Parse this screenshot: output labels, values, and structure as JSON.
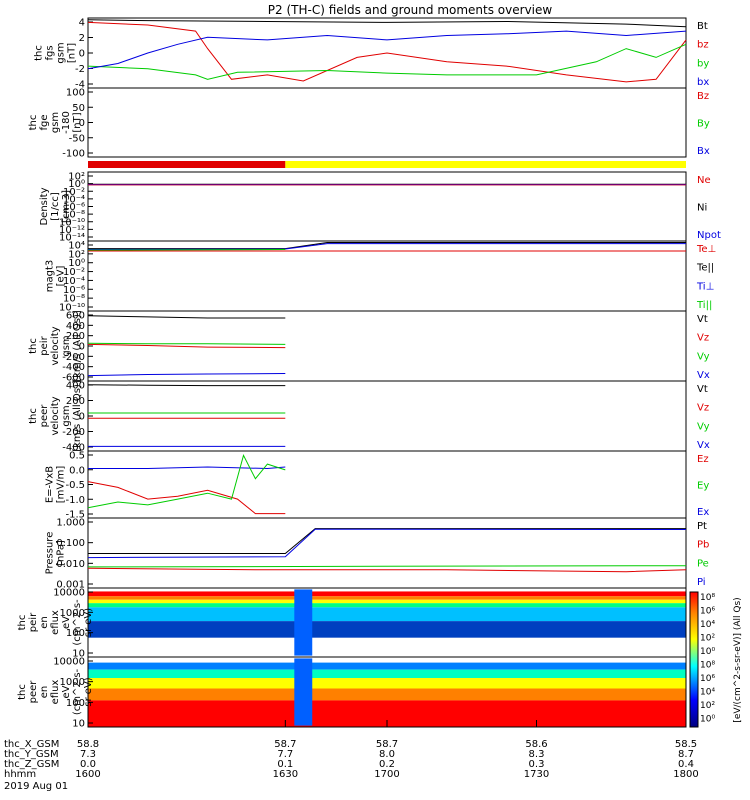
{
  "title": "P2 (TH-C) fields and ground moments overview",
  "colors": {
    "black": "#000000",
    "red": "#e00000",
    "green": "#00cc00",
    "blue": "#0000e0",
    "yellow": "#ffff00",
    "purple": "#800080"
  },
  "chart_data": [
    {
      "type": "line",
      "ylabel": [
        "thc",
        "fgs",
        "gsm",
        "[nT]"
      ],
      "yticks": [
        "4",
        "2",
        "0",
        "-2",
        "-4"
      ],
      "ylim": [
        -4,
        4
      ],
      "legend": [
        {
          "label": "Bt",
          "color": "black"
        },
        {
          "label": "bz",
          "color": "red"
        },
        {
          "label": "by",
          "color": "green"
        },
        {
          "label": "bx",
          "color": "blue"
        }
      ],
      "series": [
        {
          "name": "Bt",
          "color": "black",
          "points": [
            [
              0,
              3.8
            ],
            [
              0.1,
              3.7
            ],
            [
              0.3,
              3.6
            ],
            [
              0.5,
              3.5
            ],
            [
              0.7,
              3.6
            ],
            [
              0.9,
              3.3
            ],
            [
              1,
              3.0
            ]
          ]
        },
        {
          "name": "bz",
          "color": "red",
          "points": [
            [
              0,
              3.5
            ],
            [
              0.1,
              3.2
            ],
            [
              0.18,
              2.5
            ],
            [
              0.2,
              0.5
            ],
            [
              0.24,
              -3
            ],
            [
              0.3,
              -2.5
            ],
            [
              0.36,
              -3.2
            ],
            [
              0.45,
              -0.5
            ],
            [
              0.5,
              0
            ],
            [
              0.6,
              -1
            ],
            [
              0.7,
              -1.5
            ],
            [
              0.8,
              -2.5
            ],
            [
              0.9,
              -3.3
            ],
            [
              0.95,
              -3
            ],
            [
              1,
              1.5
            ]
          ]
        },
        {
          "name": "by",
          "color": "green",
          "points": [
            [
              0,
              -1.5
            ],
            [
              0.1,
              -1.8
            ],
            [
              0.18,
              -2.5
            ],
            [
              0.2,
              -3
            ],
            [
              0.25,
              -2.2
            ],
            [
              0.4,
              -2
            ],
            [
              0.5,
              -2.3
            ],
            [
              0.6,
              -2.5
            ],
            [
              0.75,
              -2.5
            ],
            [
              0.85,
              -1
            ],
            [
              0.9,
              0.5
            ],
            [
              0.95,
              -0.5
            ],
            [
              1,
              1
            ]
          ]
        },
        {
          "name": "bx",
          "color": "blue",
          "points": [
            [
              0,
              -1.8
            ],
            [
              0.05,
              -1.2
            ],
            [
              0.1,
              0
            ],
            [
              0.15,
              1
            ],
            [
              0.2,
              1.8
            ],
            [
              0.3,
              1.5
            ],
            [
              0.4,
              2
            ],
            [
              0.5,
              1.5
            ],
            [
              0.6,
              2
            ],
            [
              0.7,
              2.2
            ],
            [
              0.8,
              2.5
            ],
            [
              0.9,
              2
            ],
            [
              1,
              2.5
            ]
          ]
        }
      ]
    },
    {
      "type": "line",
      "ylabel": [
        "thc",
        "fge",
        "gsm",
        "-180",
        "[nT]"
      ],
      "yticks": [
        "100",
        "50",
        "0",
        "-50",
        "-100"
      ],
      "ylim": [
        -120,
        110
      ],
      "legend": [
        {
          "label": "Bz",
          "color": "red"
        },
        {
          "label": "By",
          "color": "green"
        },
        {
          "label": "Bx",
          "color": "blue"
        }
      ],
      "series": []
    },
    {
      "type": "bar",
      "status_bar": [
        {
          "from": 0,
          "to": 0.33,
          "color": "red"
        },
        {
          "from": 0.33,
          "to": 1,
          "color": "yellow"
        }
      ]
    },
    {
      "type": "line",
      "ylabel": [
        "Density",
        "[1/cc]",
        "[cm-3]"
      ],
      "yticks": [
        "10²",
        "10⁰",
        "10⁻²",
        "10⁻⁴",
        "10⁻⁶",
        "10⁻⁸",
        "10⁻¹⁰",
        "10⁻¹²",
        "10⁻¹⁴"
      ],
      "ylog": [
        -14,
        2
      ],
      "legend": [
        {
          "label": "Ne",
          "color": "red"
        },
        {
          "label": "Ni",
          "color": "black"
        },
        {
          "label": "Npot",
          "color": "blue"
        }
      ],
      "series": [
        {
          "name": "Ne",
          "color": "red",
          "points": [
            [
              0,
              0.1
            ],
            [
              1,
              0.1
            ]
          ]
        },
        {
          "name": "Ni",
          "color": "black",
          "points": [
            [
              0,
              0.15
            ],
            [
              1,
              0.15
            ]
          ]
        },
        {
          "name": "Npot",
          "color": "purple",
          "points": [
            [
              0,
              0.12
            ],
            [
              1,
              0.12
            ]
          ]
        }
      ]
    },
    {
      "type": "line",
      "ylabel": [
        "magt3",
        "[eV]"
      ],
      "yticks": [
        "10⁴",
        "10²",
        "10⁰",
        "10⁻²",
        "10⁻⁴",
        "10⁻⁶",
        "10⁻⁸",
        "10⁻¹⁰"
      ],
      "ylog": [
        -10,
        4
      ],
      "legend": [
        {
          "label": "Te⊥",
          "color": "red"
        },
        {
          "label": "Te||",
          "color": "black"
        },
        {
          "label": "Ti⊥",
          "color": "blue"
        },
        {
          "label": "Ti||",
          "color": "green"
        }
      ],
      "series": [
        {
          "name": "Te||",
          "color": "black",
          "points": [
            [
              0,
              300
            ],
            [
              0.33,
              300
            ],
            [
              0.4,
              5000
            ],
            [
              1,
              5000
            ]
          ]
        },
        {
          "name": "Ti⊥",
          "color": "blue",
          "points": [
            [
              0,
              200
            ],
            [
              0.33,
              250
            ],
            [
              0.4,
              3000
            ],
            [
              1,
              3000
            ]
          ]
        },
        {
          "name": "Ti||",
          "color": "green",
          "points": [
            [
              0,
              150
            ],
            [
              0.33,
              200
            ]
          ]
        },
        {
          "name": "Te⊥",
          "color": "red",
          "points": [
            [
              0,
              100
            ],
            [
              1,
              100
            ]
          ]
        }
      ]
    },
    {
      "type": "line",
      "ylabel": [
        "thc",
        "peir",
        "velocity",
        "gsm",
        "[km/s (All Qs)]"
      ],
      "yticks": [
        "600",
        "400",
        "200",
        "0",
        "-200",
        "-400",
        "-600"
      ],
      "ylim": [
        -650,
        650
      ],
      "legend": [
        {
          "label": "Vt",
          "color": "black"
        },
        {
          "label": "Vz",
          "color": "red"
        },
        {
          "label": "Vy",
          "color": "green"
        },
        {
          "label": "Vx",
          "color": "blue"
        }
      ],
      "series": [
        {
          "name": "Vt",
          "color": "black",
          "points": [
            [
              0,
              560
            ],
            [
              0.1,
              540
            ],
            [
              0.2,
              520
            ],
            [
              0.33,
              520
            ]
          ]
        },
        {
          "name": "Vz",
          "color": "red",
          "points": [
            [
              0,
              30
            ],
            [
              0.1,
              10
            ],
            [
              0.2,
              -20
            ],
            [
              0.33,
              -30
            ]
          ]
        },
        {
          "name": "Vy",
          "color": "green",
          "points": [
            [
              0,
              50
            ],
            [
              0.1,
              40
            ],
            [
              0.2,
              40
            ],
            [
              0.33,
              30
            ]
          ]
        },
        {
          "name": "Vx",
          "color": "blue",
          "points": [
            [
              0,
              -550
            ],
            [
              0.1,
              -530
            ],
            [
              0.2,
              -520
            ],
            [
              0.33,
              -510
            ]
          ]
        }
      ]
    },
    {
      "type": "line",
      "ylabel": [
        "thc",
        "peer",
        "velocity",
        "gsm",
        "[km/s (All Qs)]"
      ],
      "yticks": [
        "400",
        "200",
        "0",
        "-200",
        "-400"
      ],
      "ylim": [
        -460,
        460
      ],
      "legend": [
        {
          "label": "Vt",
          "color": "black"
        },
        {
          "label": "Vz",
          "color": "red"
        },
        {
          "label": "Vy",
          "color": "green"
        },
        {
          "label": "Vx",
          "color": "blue"
        }
      ],
      "series": [
        {
          "name": "Vt",
          "color": "black",
          "points": [
            [
              0,
              410
            ],
            [
              0.1,
              405
            ],
            [
              0.2,
              400
            ],
            [
              0.33,
              400
            ]
          ]
        },
        {
          "name": "Vz",
          "color": "red",
          "points": [
            [
              0,
              -30
            ],
            [
              0.1,
              -30
            ],
            [
              0.2,
              -30
            ],
            [
              0.33,
              -30
            ]
          ]
        },
        {
          "name": "Vy",
          "color": "green",
          "points": [
            [
              0,
              40
            ],
            [
              0.1,
              40
            ],
            [
              0.2,
              40
            ],
            [
              0.33,
              40
            ]
          ]
        },
        {
          "name": "Vx",
          "color": "blue",
          "points": [
            [
              0,
              -400
            ],
            [
              0.1,
              -400
            ],
            [
              0.2,
              -400
            ],
            [
              0.33,
              -400
            ]
          ]
        }
      ]
    },
    {
      "type": "line",
      "ylabel": [
        "E=-VxB",
        "[mV/m]"
      ],
      "yticks": [
        "0.5",
        "0.0",
        "-0.5",
        "-1.0",
        "-1.5"
      ],
      "ylim": [
        -1.65,
        0.65
      ],
      "legend": [
        {
          "label": "Ez",
          "color": "red"
        },
        {
          "label": "Ey",
          "color": "green"
        },
        {
          "label": "Ex",
          "color": "blue"
        }
      ],
      "series": [
        {
          "name": "Ex",
          "color": "blue",
          "points": [
            [
              0,
              0.05
            ],
            [
              0.1,
              0.05
            ],
            [
              0.2,
              0.1
            ],
            [
              0.3,
              0.05
            ],
            [
              0.33,
              0.1
            ]
          ]
        },
        {
          "name": "Ez",
          "color": "red",
          "points": [
            [
              0,
              -0.4
            ],
            [
              0.05,
              -0.6
            ],
            [
              0.1,
              -1.0
            ],
            [
              0.15,
              -0.9
            ],
            [
              0.2,
              -0.7
            ],
            [
              0.25,
              -1.0
            ],
            [
              0.28,
              -1.5
            ],
            [
              0.33,
              -1.5
            ]
          ]
        },
        {
          "name": "Ey",
          "color": "green",
          "points": [
            [
              0,
              -1.3
            ],
            [
              0.05,
              -1.1
            ],
            [
              0.1,
              -1.2
            ],
            [
              0.15,
              -1.0
            ],
            [
              0.2,
              -0.8
            ],
            [
              0.24,
              -1.0
            ],
            [
              0.26,
              0.5
            ],
            [
              0.28,
              -0.3
            ],
            [
              0.3,
              0.2
            ],
            [
              0.33,
              0.0
            ]
          ]
        }
      ]
    },
    {
      "type": "line",
      "ylabel": [
        "Pressure",
        "[nPa]"
      ],
      "yticks": [
        "1.000",
        "0.100",
        "0.010",
        "0.001"
      ],
      "ylog": [
        -3,
        0
      ],
      "legend": [
        {
          "label": "Pt",
          "color": "black"
        },
        {
          "label": "Pb",
          "color": "red"
        },
        {
          "label": "Pe",
          "color": "green"
        },
        {
          "label": "Pi",
          "color": "blue"
        }
      ],
      "series": [
        {
          "name": "Pt",
          "color": "black",
          "points": [
            [
              0,
              0.03
            ],
            [
              0.33,
              0.03
            ],
            [
              0.38,
              0.35
            ],
            [
              1,
              0.35
            ]
          ]
        },
        {
          "name": "Pi",
          "color": "blue",
          "points": [
            [
              0,
              0.02
            ],
            [
              0.33,
              0.022
            ],
            [
              0.38,
              0.33
            ],
            [
              1,
              0.32
            ]
          ]
        },
        {
          "name": "Pe",
          "color": "green",
          "points": [
            [
              0,
              0.008
            ],
            [
              1,
              0.009
            ]
          ]
        },
        {
          "name": "Pb",
          "color": "red",
          "points": [
            [
              0,
              0.007
            ],
            [
              0.3,
              0.006
            ],
            [
              0.6,
              0.006
            ],
            [
              0.9,
              0.005
            ],
            [
              1,
              0.006
            ]
          ]
        }
      ]
    },
    {
      "type": "heatmap",
      "ylabel": [
        "thc",
        "peir",
        "en",
        "eflux",
        "eV",
        "(cm^2-s-",
        "sr-eV)"
      ],
      "yticks": [
        "10000",
        "1000",
        "100",
        "10"
      ]
    },
    {
      "type": "heatmap",
      "ylabel": [
        "thc",
        "peer",
        "en",
        "eflux",
        "eV",
        "(cm^2-s-",
        "sr-eV)"
      ],
      "yticks": [
        "10000",
        "1000",
        "100",
        "10"
      ]
    }
  ],
  "colorbar": {
    "label": "[eV/(cm^2-s-sr-eV)] (All Qs)",
    "ticks": [
      "10⁸",
      "10⁶",
      "10⁴",
      "10²",
      "10⁰",
      "10⁸",
      "10⁶",
      "10⁴",
      "10²",
      "10⁰"
    ]
  },
  "xaxis": {
    "rows": [
      {
        "label": "thc_X_GSM",
        "values": [
          "58.8",
          "58.7",
          "58.7",
          "58.6",
          "58.5"
        ]
      },
      {
        "label": "thc_Y_GSM",
        "values": [
          "7.3",
          "7.7",
          "8.0",
          "8.3",
          "8.7"
        ]
      },
      {
        "label": "thc_Z_GSM",
        "values": [
          "0.0",
          "0.1",
          "0.2",
          "0.3",
          "0.4"
        ]
      },
      {
        "label": "hhmm",
        "values": [
          "1600",
          "1630",
          "1700",
          "1730",
          "1800"
        ]
      }
    ],
    "date": "2019 Aug 01"
  }
}
